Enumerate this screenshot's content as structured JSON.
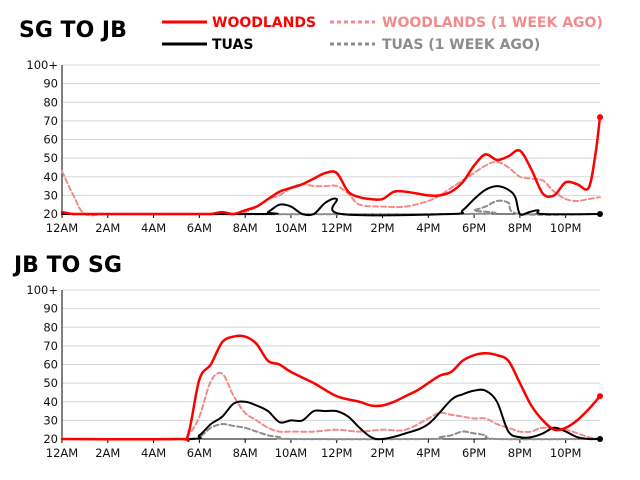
{
  "legend": [
    {
      "label": "WOODLANDS",
      "color": "#ff0000",
      "dashed": false
    },
    {
      "label": "WOODLANDS (1 WEEK AGO)",
      "color": "#f08c8c",
      "dashed": true
    },
    {
      "label": "TUAS",
      "color": "#000000",
      "dashed": false
    },
    {
      "label": "TUAS (1 WEEK AGO)",
      "color": "#8c8c8c",
      "dashed": true
    }
  ],
  "chart_data": [
    {
      "type": "line",
      "title": "SG TO JB",
      "xlabel": "",
      "ylabel": "",
      "x_range_hours": [
        0,
        23.5
      ],
      "ylim": [
        20,
        100
      ],
      "y_ticks": [
        20,
        30,
        40,
        50,
        60,
        70,
        80,
        90,
        "100+"
      ],
      "x_ticks": [
        "12AM",
        "2AM",
        "4AM",
        "6AM",
        "8AM",
        "10AM",
        "12PM",
        "2PM",
        "4PM",
        "6PM",
        "8PM",
        "10PM"
      ],
      "series": [
        {
          "name": "WOODLANDS (1 WEEK AGO)",
          "color": "#f08c8c",
          "dashed": true,
          "width": 2,
          "x": [
            0,
            0.5,
            1,
            2,
            4,
            6,
            7,
            7.5,
            8,
            8.5,
            9,
            9.5,
            10,
            10.5,
            11,
            11.5,
            12,
            12.5,
            13,
            14,
            15,
            16,
            16.5,
            17,
            17.5,
            18,
            18.5,
            19,
            19.5,
            20,
            20.5,
            21,
            21.5,
            22,
            22.5,
            23,
            23.5
          ],
          "y": [
            43,
            30,
            20,
            20,
            20,
            20,
            20,
            20,
            21,
            24,
            28,
            30,
            34,
            36,
            35,
            35,
            35,
            31,
            25,
            24,
            24,
            27,
            30,
            34,
            38,
            42,
            46,
            48,
            45,
            40,
            39,
            38,
            32,
            28,
            27,
            28,
            29
          ]
        },
        {
          "name": "TUAS (1 WEEK AGO)",
          "color": "#8c8c8c",
          "dashed": true,
          "width": 2,
          "x": [
            0,
            17.5,
            18,
            18.5,
            19,
            19.5,
            20,
            23.5
          ],
          "y": [
            20,
            20,
            22,
            24,
            27,
            26,
            20,
            20
          ]
        },
        {
          "name": "TUAS",
          "color": "#000000",
          "dashed": false,
          "width": 2,
          "x": [
            0,
            8.7,
            9,
            9.5,
            10,
            10.5,
            11,
            11.5,
            12,
            12.2,
            17,
            17.5,
            18,
            18.5,
            19,
            19.5,
            19.8,
            20,
            20.4,
            20.8,
            21,
            23.5
          ],
          "y": [
            20,
            20,
            21,
            25,
            24,
            20,
            20,
            26,
            28,
            20,
            20,
            22,
            28,
            33,
            35,
            33,
            29,
            20,
            21,
            22,
            20,
            20
          ]
        },
        {
          "name": "WOODLANDS",
          "color": "#ff0000",
          "dashed": false,
          "width": 2.5,
          "x": [
            0,
            0.5,
            1,
            6,
            6.5,
            7,
            7.5,
            8,
            8.5,
            9,
            9.5,
            10,
            10.5,
            11,
            11.5,
            12,
            12.5,
            13,
            13.5,
            14,
            14.5,
            15,
            15.5,
            16,
            16.5,
            17,
            17.5,
            18,
            18.5,
            19,
            19.5,
            20,
            20.5,
            21,
            21.5,
            22,
            22.5,
            23,
            23.3,
            23.5
          ],
          "y": [
            21,
            20,
            20,
            20,
            20,
            21,
            20,
            22,
            24,
            28,
            32,
            34,
            36,
            39,
            42,
            42,
            32,
            29,
            28,
            28,
            32,
            32,
            31,
            30,
            30,
            32,
            37,
            46,
            52,
            49,
            51,
            54,
            44,
            31,
            30,
            37,
            36,
            34,
            52,
            72
          ],
          "end_marker": 72
        },
        {
          "name": "TUAS END",
          "color": "#000000",
          "dashed": false,
          "width": 0,
          "x": [
            23.5
          ],
          "y": [
            20
          ],
          "end_marker": 20
        }
      ]
    },
    {
      "type": "line",
      "title": "JB TO SG",
      "xlabel": "",
      "ylabel": "",
      "x_range_hours": [
        0,
        23.5
      ],
      "ylim": [
        20,
        100
      ],
      "y_ticks": [
        20,
        30,
        40,
        50,
        60,
        70,
        80,
        90,
        "100+"
      ],
      "x_ticks": [
        "12AM",
        "2AM",
        "4AM",
        "6AM",
        "8AM",
        "10AM",
        "12PM",
        "2PM",
        "4PM",
        "6PM",
        "8PM",
        "10PM"
      ],
      "series": [
        {
          "name": "WOODLANDS (1 WEEK AGO)",
          "color": "#f08c8c",
          "dashed": true,
          "width": 2,
          "x": [
            0,
            5,
            5.5,
            6,
            6.5,
            7,
            7.5,
            8,
            8.5,
            9,
            9.5,
            10,
            11,
            12,
            13,
            14,
            15,
            16,
            16.5,
            17,
            17.5,
            18,
            18.5,
            19,
            19.5,
            20,
            20.5,
            21,
            22,
            23,
            23.5
          ],
          "y": [
            20,
            20,
            22,
            32,
            51,
            55,
            43,
            34,
            30,
            26,
            24,
            24,
            24,
            25,
            24,
            25,
            25,
            31,
            34,
            33,
            32,
            31,
            31,
            28,
            26,
            24,
            24,
            26,
            25,
            21,
            20
          ]
        },
        {
          "name": "TUAS (1 WEEK AGO)",
          "color": "#8c8c8c",
          "dashed": true,
          "width": 2,
          "x": [
            0,
            5.5,
            6,
            6.5,
            7,
            7.5,
            8,
            8.5,
            9,
            9.5,
            10,
            16,
            16.5,
            17,
            17.5,
            18,
            18.5,
            19,
            23.5
          ],
          "y": [
            20,
            20,
            21,
            26,
            28,
            27,
            26,
            24,
            22,
            21,
            20,
            20,
            21,
            22,
            24,
            23,
            22,
            20,
            20
          ]
        },
        {
          "name": "TUAS",
          "color": "#000000",
          "dashed": false,
          "width": 2,
          "x": [
            0,
            5.5,
            6,
            6.5,
            7,
            7.5,
            8,
            8.5,
            9,
            9.5,
            10,
            10.5,
            11,
            11.5,
            12,
            12.5,
            13,
            13.5,
            14,
            15,
            16,
            17,
            17.5,
            18,
            18.5,
            19,
            19.5,
            20,
            20.5,
            21,
            21.5,
            22,
            22.5,
            23,
            23.5
          ],
          "y": [
            20,
            20,
            22,
            28,
            32,
            39,
            40,
            38,
            35,
            29,
            30,
            30,
            35,
            35,
            35,
            32,
            26,
            21,
            20,
            23,
            28,
            41,
            44,
            46,
            46,
            40,
            24,
            21,
            21,
            23,
            26,
            24,
            21,
            20,
            20
          ],
          "end_marker": 20
        },
        {
          "name": "WOODLANDS",
          "color": "#ff0000",
          "dashed": false,
          "width": 2.5,
          "x": [
            0,
            5,
            5.5,
            6,
            6.5,
            7,
            7.5,
            8,
            8.5,
            9,
            9.5,
            10,
            11,
            12,
            13,
            13.5,
            14,
            14.5,
            15,
            15.5,
            16,
            16.5,
            17,
            17.5,
            18,
            18.5,
            19,
            19.5,
            20,
            20.5,
            21,
            21.5,
            22,
            22.5,
            23,
            23.5
          ],
          "y": [
            20,
            20,
            22,
            52,
            60,
            72,
            75,
            75,
            71,
            62,
            60,
            56,
            50,
            43,
            40,
            38,
            38,
            40,
            43,
            46,
            50,
            54,
            56,
            62,
            65,
            66,
            65,
            62,
            50,
            38,
            30,
            25,
            26,
            30,
            36,
            43
          ],
          "end_marker": 43
        }
      ]
    }
  ]
}
